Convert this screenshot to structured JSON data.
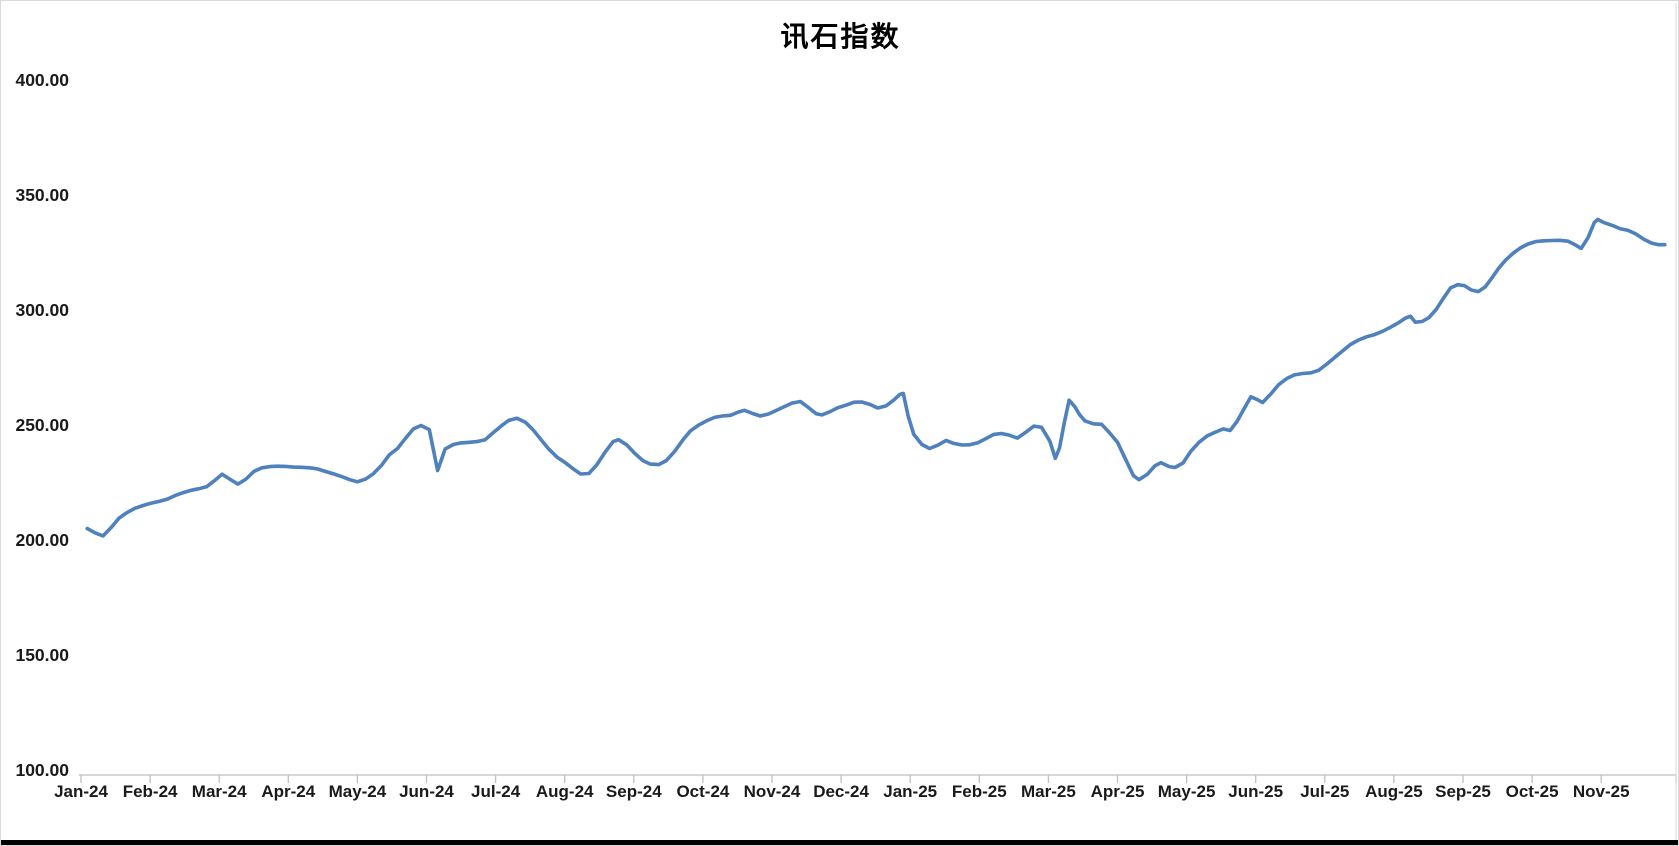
{
  "title": "讯石指数",
  "chart_data": {
    "type": "line",
    "title": "讯石指数",
    "xlabel": "",
    "ylabel": "",
    "ylim": [
      100,
      400
    ],
    "y_tick_step": 50,
    "y_tick_labels": [
      "400.00",
      "350.00",
      "300.00",
      "250.00",
      "200.00",
      "150.00",
      "100.00"
    ],
    "grid": false,
    "legend_position": "none",
    "line_color": "#4F81BD",
    "axis_color": "#BFBFBF",
    "categories": [
      "Jan-24",
      "Feb-24",
      "Mar-24",
      "Apr-24",
      "May-24",
      "Jun-24",
      "Jul-24",
      "Aug-24",
      "Sep-24",
      "Oct-24",
      "Nov-24",
      "Dec-24",
      "Jan-25",
      "Feb-25",
      "Mar-25",
      "Apr-25",
      "May-25",
      "Jun-25",
      "Jul-25",
      "Aug-25",
      "Sep-25",
      "Oct-25",
      "Nov-25"
    ],
    "series": [
      {
        "name": "讯石指数",
        "points": [
          [
            0.09,
            205.0
          ],
          [
            0.21,
            203.0
          ],
          [
            0.32,
            201.8
          ],
          [
            0.44,
            205.5
          ],
          [
            0.55,
            209.5
          ],
          [
            0.67,
            212.0
          ],
          [
            0.78,
            213.8
          ],
          [
            0.9,
            215.0
          ],
          [
            1.01,
            216.0
          ],
          [
            1.13,
            216.8
          ],
          [
            1.25,
            217.8
          ],
          [
            1.36,
            219.3
          ],
          [
            1.48,
            220.6
          ],
          [
            1.59,
            221.6
          ],
          [
            1.71,
            222.3
          ],
          [
            1.82,
            223.2
          ],
          [
            1.94,
            226.0
          ],
          [
            2.04,
            228.6
          ],
          [
            2.15,
            226.5
          ],
          [
            2.27,
            224.3
          ],
          [
            2.39,
            226.5
          ],
          [
            2.5,
            229.8
          ],
          [
            2.62,
            231.4
          ],
          [
            2.73,
            231.9
          ],
          [
            2.85,
            232.1
          ],
          [
            2.96,
            232.0
          ],
          [
            3.08,
            231.7
          ],
          [
            3.19,
            231.6
          ],
          [
            3.31,
            231.4
          ],
          [
            3.42,
            230.9
          ],
          [
            3.54,
            229.8
          ],
          [
            3.66,
            228.7
          ],
          [
            3.77,
            227.6
          ],
          [
            3.89,
            226.2
          ],
          [
            4.0,
            225.3
          ],
          [
            4.12,
            226.5
          ],
          [
            4.23,
            228.8
          ],
          [
            4.35,
            232.5
          ],
          [
            4.46,
            237.0
          ],
          [
            4.58,
            239.8
          ],
          [
            4.69,
            244.0
          ],
          [
            4.81,
            248.3
          ],
          [
            4.92,
            249.8
          ],
          [
            5.04,
            248.0
          ],
          [
            5.16,
            230.2
          ],
          [
            5.27,
            239.6
          ],
          [
            5.39,
            241.5
          ],
          [
            5.5,
            242.2
          ],
          [
            5.62,
            242.5
          ],
          [
            5.73,
            242.8
          ],
          [
            5.85,
            243.6
          ],
          [
            5.96,
            246.5
          ],
          [
            6.08,
            249.5
          ],
          [
            6.19,
            252.0
          ],
          [
            6.31,
            252.9
          ],
          [
            6.43,
            251.2
          ],
          [
            6.54,
            248.0
          ],
          [
            6.66,
            243.5
          ],
          [
            6.77,
            239.5
          ],
          [
            6.89,
            236.0
          ],
          [
            7.0,
            233.8
          ],
          [
            7.12,
            231.0
          ],
          [
            7.23,
            228.7
          ],
          [
            7.35,
            228.9
          ],
          [
            7.46,
            232.5
          ],
          [
            7.58,
            238.0
          ],
          [
            7.7,
            242.8
          ],
          [
            7.78,
            243.6
          ],
          [
            7.9,
            241.3
          ],
          [
            8.01,
            237.8
          ],
          [
            8.13,
            234.5
          ],
          [
            8.24,
            233.0
          ],
          [
            8.36,
            232.8
          ],
          [
            8.47,
            234.5
          ],
          [
            8.59,
            238.5
          ],
          [
            8.71,
            243.5
          ],
          [
            8.82,
            247.5
          ],
          [
            8.94,
            250.0
          ],
          [
            9.05,
            251.8
          ],
          [
            9.17,
            253.3
          ],
          [
            9.28,
            253.9
          ],
          [
            9.4,
            254.2
          ],
          [
            9.51,
            255.6
          ],
          [
            9.6,
            256.4
          ],
          [
            9.72,
            255.0
          ],
          [
            9.83,
            253.9
          ],
          [
            9.95,
            254.8
          ],
          [
            10.06,
            256.3
          ],
          [
            10.18,
            258.0
          ],
          [
            10.29,
            259.5
          ],
          [
            10.41,
            260.2
          ],
          [
            10.52,
            257.8
          ],
          [
            10.64,
            254.9
          ],
          [
            10.72,
            254.4
          ],
          [
            10.84,
            255.8
          ],
          [
            10.95,
            257.5
          ],
          [
            11.07,
            258.6
          ],
          [
            11.19,
            259.9
          ],
          [
            11.3,
            260.0
          ],
          [
            11.42,
            258.9
          ],
          [
            11.53,
            257.4
          ],
          [
            11.65,
            258.3
          ],
          [
            11.76,
            260.8
          ],
          [
            11.85,
            263.3
          ],
          [
            11.9,
            263.7
          ],
          [
            11.97,
            254.0
          ],
          [
            12.05,
            246.0
          ],
          [
            12.17,
            241.5
          ],
          [
            12.28,
            239.8
          ],
          [
            12.4,
            241.2
          ],
          [
            12.52,
            243.3
          ],
          [
            12.63,
            242.0
          ],
          [
            12.75,
            241.3
          ],
          [
            12.86,
            241.4
          ],
          [
            12.98,
            242.3
          ],
          [
            13.09,
            244.0
          ],
          [
            13.21,
            245.9
          ],
          [
            13.32,
            246.3
          ],
          [
            13.44,
            245.5
          ],
          [
            13.55,
            244.3
          ],
          [
            13.67,
            246.8
          ],
          [
            13.79,
            249.5
          ],
          [
            13.9,
            249.0
          ],
          [
            14.02,
            243.0
          ],
          [
            14.1,
            235.5
          ],
          [
            14.16,
            240.0
          ],
          [
            14.23,
            251.0
          ],
          [
            14.3,
            260.8
          ],
          [
            14.38,
            258.0
          ],
          [
            14.45,
            254.5
          ],
          [
            14.53,
            251.8
          ],
          [
            14.65,
            250.5
          ],
          [
            14.77,
            250.3
          ],
          [
            14.88,
            246.8
          ],
          [
            15.0,
            242.5
          ],
          [
            15.11,
            235.5
          ],
          [
            15.23,
            228.0
          ],
          [
            15.31,
            226.2
          ],
          [
            15.43,
            228.5
          ],
          [
            15.54,
            232.2
          ],
          [
            15.63,
            233.6
          ],
          [
            15.75,
            231.9
          ],
          [
            15.83,
            231.5
          ],
          [
            15.95,
            233.5
          ],
          [
            16.06,
            238.5
          ],
          [
            16.18,
            242.5
          ],
          [
            16.3,
            245.3
          ],
          [
            16.41,
            246.8
          ],
          [
            16.53,
            248.3
          ],
          [
            16.63,
            247.6
          ],
          [
            16.73,
            251.5
          ],
          [
            16.83,
            257.0
          ],
          [
            16.93,
            262.3
          ],
          [
            17.03,
            260.9
          ],
          [
            17.1,
            259.8
          ],
          [
            17.22,
            263.5
          ],
          [
            17.33,
            267.5
          ],
          [
            17.45,
            270.2
          ],
          [
            17.56,
            271.8
          ],
          [
            17.68,
            272.4
          ],
          [
            17.8,
            272.7
          ],
          [
            17.91,
            273.8
          ],
          [
            18.03,
            276.5
          ],
          [
            18.14,
            279.3
          ],
          [
            18.26,
            282.3
          ],
          [
            18.37,
            285.0
          ],
          [
            18.49,
            287.0
          ],
          [
            18.6,
            288.3
          ],
          [
            18.72,
            289.3
          ],
          [
            18.84,
            290.8
          ],
          [
            18.95,
            292.5
          ],
          [
            19.07,
            294.5
          ],
          [
            19.17,
            296.5
          ],
          [
            19.24,
            297.3
          ],
          [
            19.31,
            294.7
          ],
          [
            19.41,
            295.0
          ],
          [
            19.51,
            296.8
          ],
          [
            19.61,
            300.2
          ],
          [
            19.72,
            305.3
          ],
          [
            19.82,
            309.6
          ],
          [
            19.92,
            311.0
          ],
          [
            20.02,
            310.6
          ],
          [
            20.12,
            308.7
          ],
          [
            20.22,
            308.0
          ],
          [
            20.32,
            310.0
          ],
          [
            20.42,
            314.0
          ],
          [
            20.52,
            318.3
          ],
          [
            20.62,
            321.8
          ],
          [
            20.73,
            324.8
          ],
          [
            20.83,
            327.0
          ],
          [
            20.94,
            328.7
          ],
          [
            21.06,
            329.8
          ],
          [
            21.17,
            330.1
          ],
          [
            21.29,
            330.2
          ],
          [
            21.4,
            330.3
          ],
          [
            21.52,
            329.9
          ],
          [
            21.62,
            328.4
          ],
          [
            21.71,
            326.8
          ],
          [
            21.81,
            331.5
          ],
          [
            21.9,
            338.0
          ],
          [
            21.95,
            339.4
          ],
          [
            22.04,
            338.0
          ],
          [
            22.16,
            336.8
          ],
          [
            22.27,
            335.4
          ],
          [
            22.39,
            334.6
          ],
          [
            22.5,
            333.1
          ],
          [
            22.62,
            330.7
          ],
          [
            22.73,
            329.1
          ],
          [
            22.83,
            328.4
          ],
          [
            22.92,
            328.4
          ]
        ]
      }
    ]
  }
}
